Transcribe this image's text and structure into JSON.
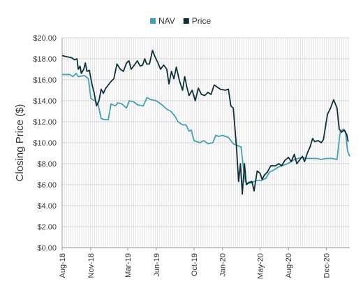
{
  "chart_data": {
    "type": "line",
    "title": "",
    "xlabel": "",
    "ylabel": "Closing Price ($)",
    "ylim": [
      0,
      20
    ],
    "y_ticks": [
      "$0.00",
      "$2.00",
      "$4.00",
      "$6.00",
      "$8.00",
      "$10.00",
      "$12.00",
      "$14.00",
      "$16.00",
      "$18.00",
      "$20.00"
    ],
    "x_range": [
      "2018-08-01",
      "2021-02-15"
    ],
    "x_ticks": [
      {
        "date": "2018-08-01",
        "label": "Aug-18"
      },
      {
        "date": "2018-11-01",
        "label": "Nov-18"
      },
      {
        "date": "2019-03-01",
        "label": "Mar-19"
      },
      {
        "date": "2019-06-01",
        "label": "Jun-19"
      },
      {
        "date": "2019-10-01",
        "label": "Oct-19"
      },
      {
        "date": "2020-01-01",
        "label": "Jan-20"
      },
      {
        "date": "2020-05-01",
        "label": "May-20"
      },
      {
        "date": "2020-08-01",
        "label": "Aug-20"
      },
      {
        "date": "2020-12-01",
        "label": "Dec-20"
      }
    ],
    "grid": true,
    "legend_position": "top-center",
    "series": [
      {
        "name": "NAV",
        "color": "#3fa3b5",
        "points": [
          [
            "2018-08-01",
            16.5
          ],
          [
            "2018-08-25",
            16.5
          ],
          [
            "2018-09-05",
            16.3
          ],
          [
            "2018-09-15",
            16.6
          ],
          [
            "2018-09-22",
            16.3
          ],
          [
            "2018-10-12",
            16.4
          ],
          [
            "2018-10-25",
            16.1
          ],
          [
            "2018-11-02",
            14.2
          ],
          [
            "2018-11-15",
            14.0
          ],
          [
            "2018-11-25",
            13.7
          ],
          [
            "2018-12-05",
            12.3
          ],
          [
            "2018-12-15",
            12.2
          ],
          [
            "2018-12-28",
            12.2
          ],
          [
            "2019-01-06",
            13.7
          ],
          [
            "2019-01-20",
            13.5
          ],
          [
            "2019-01-28",
            13.8
          ],
          [
            "2019-02-10",
            13.7
          ],
          [
            "2019-02-25",
            13.3
          ],
          [
            "2019-03-06",
            14.0
          ],
          [
            "2019-03-20",
            13.9
          ],
          [
            "2019-04-02",
            13.6
          ],
          [
            "2019-04-20",
            13.5
          ],
          [
            "2019-05-02",
            14.3
          ],
          [
            "2019-05-15",
            14.1
          ],
          [
            "2019-06-01",
            14.0
          ],
          [
            "2019-06-20",
            13.6
          ],
          [
            "2019-07-05",
            13.2
          ],
          [
            "2019-07-18",
            13.0
          ],
          [
            "2019-08-01",
            12.5
          ],
          [
            "2019-08-10",
            12.0
          ],
          [
            "2019-08-25",
            11.7
          ],
          [
            "2019-09-05",
            11.7
          ],
          [
            "2019-09-15",
            11.1
          ],
          [
            "2019-09-22",
            11.2
          ],
          [
            "2019-10-01",
            10.2
          ],
          [
            "2019-10-20",
            10.0
          ],
          [
            "2019-11-01",
            10.2
          ],
          [
            "2019-11-15",
            9.9
          ],
          [
            "2019-12-01",
            10.0
          ],
          [
            "2019-12-10",
            10.7
          ],
          [
            "2019-12-20",
            10.6
          ],
          [
            "2020-01-01",
            10.7
          ],
          [
            "2020-01-20",
            10.5
          ],
          [
            "2020-02-05",
            9.9
          ],
          [
            "2020-02-20",
            9.7
          ],
          [
            "2020-03-01",
            9.6
          ],
          [
            "2020-03-08",
            7.8
          ],
          [
            "2020-03-15",
            6.3
          ],
          [
            "2020-03-22",
            6.1
          ],
          [
            "2020-04-05",
            6.2
          ],
          [
            "2020-04-20",
            6.4
          ],
          [
            "2020-05-05",
            6.4
          ],
          [
            "2020-05-20",
            6.6
          ],
          [
            "2020-06-01",
            7.2
          ],
          [
            "2020-06-15",
            7.4
          ],
          [
            "2020-07-01",
            7.7
          ],
          [
            "2020-07-20",
            7.9
          ],
          [
            "2020-08-05",
            8.1
          ],
          [
            "2020-08-20",
            8.4
          ],
          [
            "2020-09-01",
            8.5
          ],
          [
            "2020-09-15",
            8.6
          ],
          [
            "2020-10-01",
            8.5
          ],
          [
            "2020-10-15",
            8.5
          ],
          [
            "2020-11-01",
            8.5
          ],
          [
            "2020-11-15",
            8.4
          ],
          [
            "2020-12-01",
            8.5
          ],
          [
            "2020-12-20",
            8.5
          ],
          [
            "2021-01-05",
            8.4
          ],
          [
            "2021-01-15",
            11.0
          ],
          [
            "2021-01-25",
            11.3
          ],
          [
            "2021-02-01",
            11.1
          ],
          [
            "2021-02-08",
            9.2
          ],
          [
            "2021-02-15",
            8.7
          ]
        ]
      },
      {
        "name": "Price",
        "color": "#0d3038",
        "points": [
          [
            "2018-08-01",
            18.3
          ],
          [
            "2018-08-15",
            18.2
          ],
          [
            "2018-09-01",
            18.1
          ],
          [
            "2018-09-10",
            17.9
          ],
          [
            "2018-09-18",
            18.0
          ],
          [
            "2018-09-22",
            17.0
          ],
          [
            "2018-09-28",
            17.3
          ],
          [
            "2018-10-02",
            16.6
          ],
          [
            "2018-10-10",
            17.0
          ],
          [
            "2018-10-15",
            17.6
          ],
          [
            "2018-10-20",
            16.8
          ],
          [
            "2018-10-28",
            16.9
          ],
          [
            "2018-11-05",
            15.6
          ],
          [
            "2018-11-12",
            14.8
          ],
          [
            "2018-11-20",
            13.5
          ],
          [
            "2018-11-28",
            14.0
          ],
          [
            "2018-12-05",
            15.1
          ],
          [
            "2018-12-12",
            14.7
          ],
          [
            "2018-12-20",
            15.2
          ],
          [
            "2018-12-28",
            15.5
          ],
          [
            "2019-01-05",
            15.8
          ],
          [
            "2019-01-15",
            16.1
          ],
          [
            "2019-01-25",
            17.5
          ],
          [
            "2019-02-05",
            17.0
          ],
          [
            "2019-02-15",
            16.8
          ],
          [
            "2019-02-25",
            17.6
          ],
          [
            "2019-03-05",
            17.8
          ],
          [
            "2019-03-12",
            17.0
          ],
          [
            "2019-03-20",
            17.3
          ],
          [
            "2019-04-01",
            17.8
          ],
          [
            "2019-04-10",
            17.3
          ],
          [
            "2019-04-18",
            17.4
          ],
          [
            "2019-04-25",
            18.0
          ],
          [
            "2019-05-01",
            17.5
          ],
          [
            "2019-05-10",
            17.5
          ],
          [
            "2019-05-20",
            18.8
          ],
          [
            "2019-05-28",
            18.2
          ],
          [
            "2019-06-05",
            17.7
          ],
          [
            "2019-06-15",
            17.0
          ],
          [
            "2019-06-25",
            17.4
          ],
          [
            "2019-07-05",
            17.0
          ],
          [
            "2019-07-12",
            15.6
          ],
          [
            "2019-07-20",
            16.8
          ],
          [
            "2019-07-28",
            16.1
          ],
          [
            "2019-08-05",
            17.2
          ],
          [
            "2019-08-15",
            15.9
          ],
          [
            "2019-08-25",
            15.0
          ],
          [
            "2019-09-01",
            16.3
          ],
          [
            "2019-09-08",
            15.3
          ],
          [
            "2019-09-15",
            14.5
          ],
          [
            "2019-09-25",
            15.0
          ],
          [
            "2019-10-05",
            14.0
          ],
          [
            "2019-10-15",
            15.2
          ],
          [
            "2019-10-25",
            14.6
          ],
          [
            "2019-11-05",
            14.5
          ],
          [
            "2019-11-15",
            14.8
          ],
          [
            "2019-11-25",
            14.6
          ],
          [
            "2019-12-05",
            15.5
          ],
          [
            "2019-12-15",
            15.3
          ],
          [
            "2019-12-25",
            15.1
          ],
          [
            "2020-01-10",
            15.0
          ],
          [
            "2020-01-20",
            15.1
          ],
          [
            "2020-01-28",
            13.5
          ],
          [
            "2020-02-05",
            13.3
          ],
          [
            "2020-02-15",
            9.6
          ],
          [
            "2020-02-22",
            6.3
          ],
          [
            "2020-02-28",
            8.0
          ],
          [
            "2020-03-05",
            5.1
          ],
          [
            "2020-03-12",
            8.0
          ],
          [
            "2020-03-18",
            6.0
          ],
          [
            "2020-03-25",
            6.2
          ],
          [
            "2020-04-05",
            6.3
          ],
          [
            "2020-04-12",
            5.4
          ],
          [
            "2020-04-22",
            7.3
          ],
          [
            "2020-05-01",
            7.1
          ],
          [
            "2020-05-08",
            6.5
          ],
          [
            "2020-05-15",
            6.9
          ],
          [
            "2020-05-25",
            7.2
          ],
          [
            "2020-06-05",
            7.8
          ],
          [
            "2020-06-20",
            7.8
          ],
          [
            "2020-07-01",
            8.0
          ],
          [
            "2020-07-10",
            7.8
          ],
          [
            "2020-07-20",
            8.3
          ],
          [
            "2020-08-01",
            8.6
          ],
          [
            "2020-08-10",
            8.2
          ],
          [
            "2020-08-20",
            8.9
          ],
          [
            "2020-08-28",
            8.0
          ],
          [
            "2020-09-05",
            8.3
          ],
          [
            "2020-09-15",
            8.7
          ],
          [
            "2020-09-22",
            8.2
          ],
          [
            "2020-10-01",
            9.0
          ],
          [
            "2020-10-10",
            9.6
          ],
          [
            "2020-10-18",
            10.4
          ],
          [
            "2020-10-25",
            10.1
          ],
          [
            "2020-11-05",
            10.2
          ],
          [
            "2020-11-15",
            10.0
          ],
          [
            "2020-11-22",
            10.3
          ],
          [
            "2020-12-05",
            12.7
          ],
          [
            "2020-12-15",
            13.3
          ],
          [
            "2020-12-25",
            14.1
          ],
          [
            "2021-01-05",
            13.3
          ],
          [
            "2021-01-12",
            11.3
          ],
          [
            "2021-01-20",
            11.0
          ],
          [
            "2021-01-28",
            11.2
          ],
          [
            "2021-02-05",
            10.8
          ],
          [
            "2021-02-10",
            10.1
          ]
        ]
      }
    ]
  }
}
